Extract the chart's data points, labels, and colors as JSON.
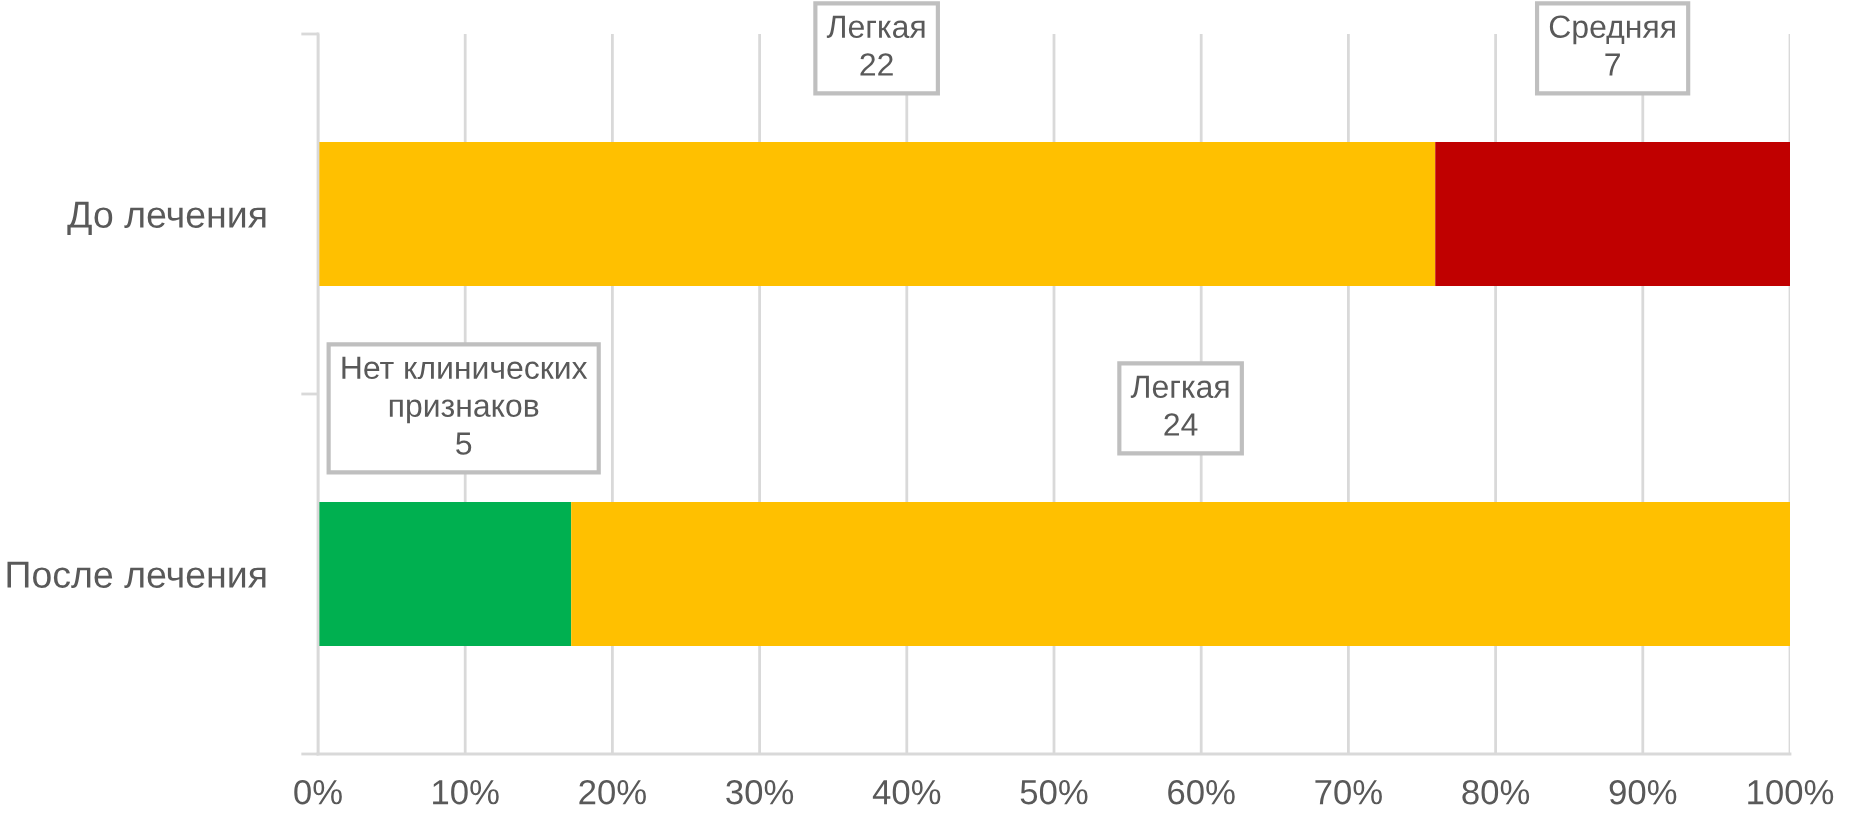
{
  "chart_data": {
    "type": "bar",
    "orientation": "horizontal",
    "stacked": true,
    "categories": [
      "До лечения",
      "После лечения"
    ],
    "series": [
      {
        "color": "#00b050",
        "values": [
          null,
          17.2
        ]
      },
      {
        "color": "#ffc000",
        "values": [
          75.9,
          82.8
        ]
      },
      {
        "color": "#c00000",
        "values": [
          24.1,
          null
        ]
      }
    ],
    "annotations": [
      "Нет клинических\nпризнаков\n5",
      "Легкая\n22",
      "Легкая\n24",
      "Средняя\n7"
    ],
    "xlim": [
      0,
      100
    ],
    "xticks": [
      {
        "value": 0,
        "label": "0%"
      },
      {
        "value": 10,
        "label": "10%"
      },
      {
        "value": 20,
        "label": "20%"
      },
      {
        "value": 30,
        "label": "30%"
      },
      {
        "value": 40,
        "label": "40%"
      },
      {
        "value": 50,
        "label": "50%"
      },
      {
        "value": 60,
        "label": "60%"
      },
      {
        "value": 70,
        "label": "70%"
      },
      {
        "value": 80,
        "label": "80%"
      },
      {
        "value": 90,
        "label": "90%"
      },
      {
        "value": 100,
        "label": "100%"
      }
    ],
    "grid": "x"
  }
}
